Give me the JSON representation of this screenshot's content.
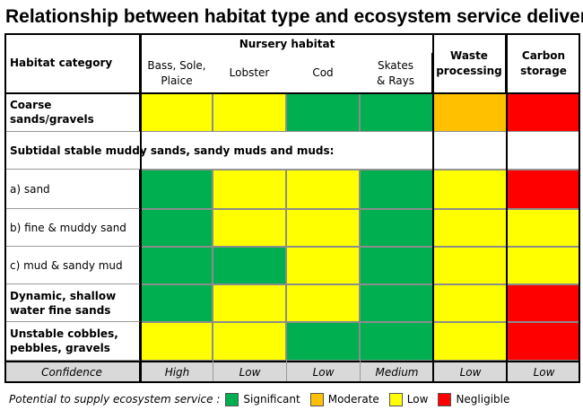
{
  "title": "Relationship between habitat type and ecosystem service delivery",
  "chart_data": {
    "type": "table",
    "header": {
      "category_label": "Habitat category",
      "group_label": "Nursery habitat",
      "columns": [
        "Bass, Sole, Plaice",
        "Lobster",
        "Cod",
        "Skates & Rays",
        "Waste processing",
        "Carbon storage"
      ],
      "column_lines": [
        [
          "Bass, Sole,",
          "Plaice"
        ],
        [
          "Lobster"
        ],
        [
          "Cod"
        ],
        [
          "Skates",
          "& Rays"
        ],
        [
          "Waste",
          "processing"
        ],
        [
          "Carbon",
          "storage"
        ]
      ]
    },
    "rows": [
      {
        "label": "Coarse sands/gravels",
        "label_lines": [
          "Coarse",
          "sands/gravels"
        ],
        "bold": true,
        "values": [
          "Low",
          "Low",
          "Significant",
          "Significant",
          "Moderate",
          "Negligible"
        ]
      },
      {
        "section_heading": "Subtidal stable muddy sands, sandy muds and muds:"
      },
      {
        "label": "a) sand",
        "label_lines": [
          "a) sand"
        ],
        "bold": false,
        "values": [
          "Significant",
          "Low",
          "Low",
          "Significant",
          "Low",
          "Negligible"
        ]
      },
      {
        "label": "b) fine & muddy sand",
        "label_lines": [
          "b) fine & muddy sand"
        ],
        "bold": false,
        "values": [
          "Significant",
          "Low",
          "Low",
          "Significant",
          "Low",
          "Low"
        ]
      },
      {
        "label": "c) mud & sandy mud",
        "label_lines": [
          "c) mud & sandy mud"
        ],
        "bold": false,
        "values": [
          "Significant",
          "Significant",
          "Low",
          "Significant",
          "Low",
          "Low"
        ]
      },
      {
        "label": "Dynamic, shallow water fine sands",
        "label_lines": [
          "Dynamic, shallow",
          "water fine sands"
        ],
        "bold": true,
        "values": [
          "Significant",
          "Low",
          "Low",
          "Significant",
          "Low",
          "Negligible"
        ]
      },
      {
        "label": "Unstable cobbles, pebbles, gravels",
        "label_lines": [
          "Unstable cobbles,",
          "pebbles, gravels"
        ],
        "bold": true,
        "values": [
          "Low",
          "Low",
          "Significant",
          "Significant",
          "Low",
          "Negligible"
        ]
      }
    ],
    "confidence": {
      "label": "Confidence",
      "values": [
        "High",
        "Low",
        "Low",
        "Medium",
        "Low",
        "Low"
      ]
    },
    "legend": {
      "label": "Potential to supply ecosystem service :",
      "items": [
        {
          "name": "Significant",
          "color": "#00B050"
        },
        {
          "name": "Moderate",
          "color": "#FFC000"
        },
        {
          "name": "Low",
          "color": "#FFFF00"
        },
        {
          "name": "Negligible",
          "color": "#FF0000"
        }
      ]
    }
  }
}
